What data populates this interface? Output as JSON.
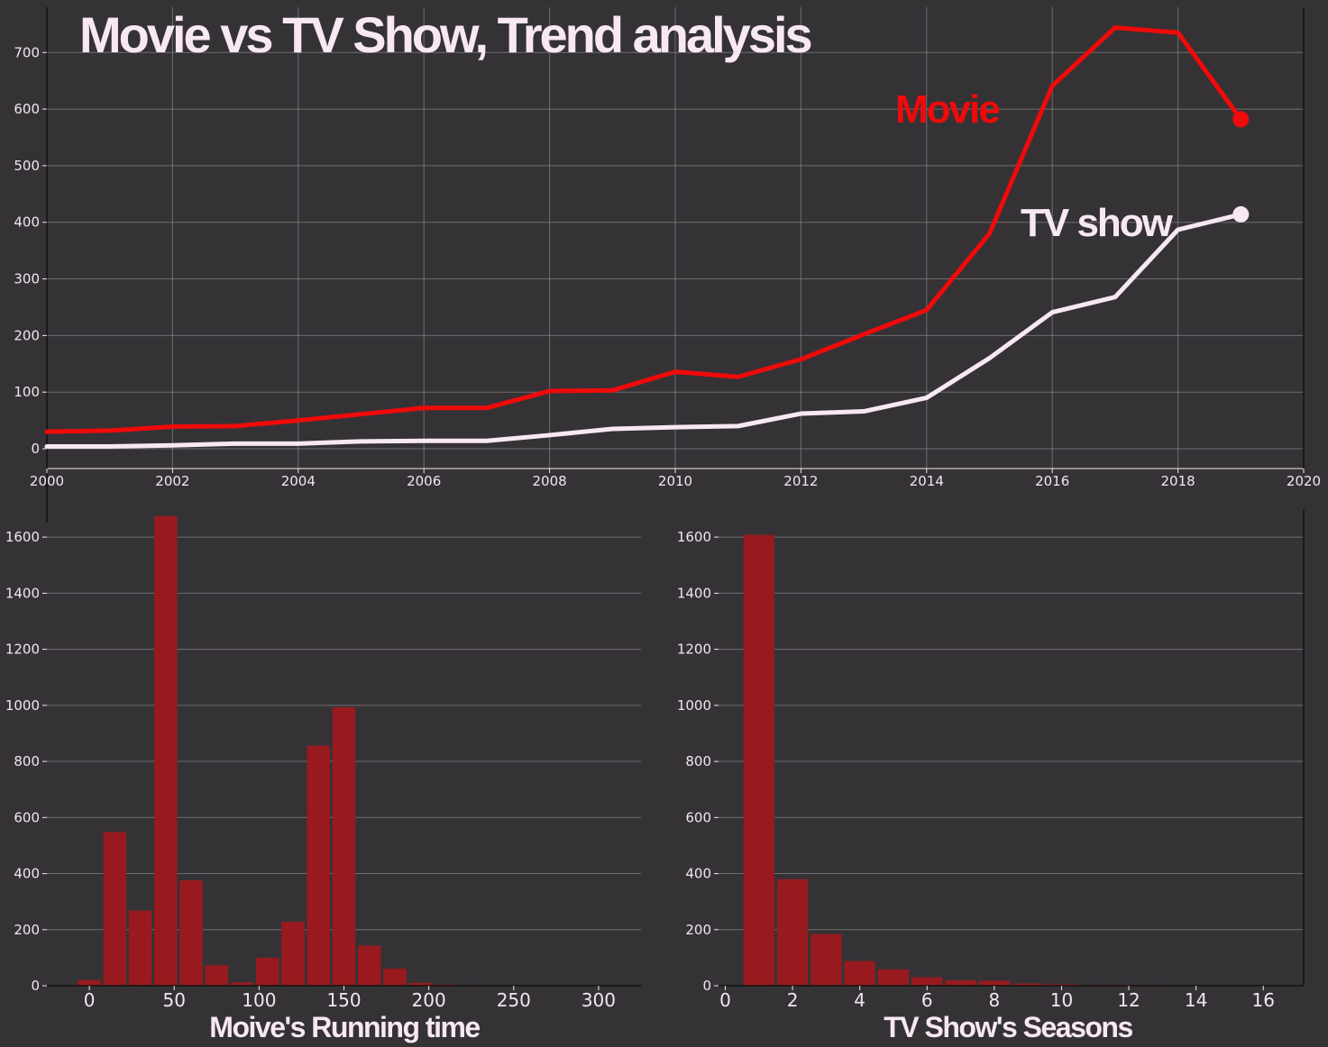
{
  "colors": {
    "background": "#353236",
    "movie": "#f00a0a",
    "tv": "#f7e8f2",
    "bar": "#981a1e",
    "text": "#f2e6ee"
  },
  "chart_data": [
    {
      "type": "line",
      "title": "Movie vs TV Show, Trend analysis",
      "xlabel": "",
      "ylabel": "",
      "xlim": [
        2000,
        2020
      ],
      "ylim": [
        -35,
        780
      ],
      "x_ticks": [
        2000,
        2002,
        2004,
        2006,
        2008,
        2010,
        2012,
        2014,
        2016,
        2018,
        2020
      ],
      "y_ticks": [
        0,
        100,
        200,
        300,
        400,
        500,
        600,
        700
      ],
      "grid": true,
      "x": [
        2000,
        2001,
        2002,
        2003,
        2004,
        2005,
        2006,
        2007,
        2008,
        2009,
        2010,
        2011,
        2012,
        2013,
        2014,
        2015,
        2016,
        2017,
        2018,
        2019
      ],
      "series": [
        {
          "name": "Movie",
          "values": [
            30,
            32,
            39,
            40,
            50,
            61,
            72,
            72,
            102,
            103,
            136,
            127,
            158,
            202,
            245,
            380,
            641,
            744,
            735,
            582
          ]
        },
        {
          "name": "TV show",
          "values": [
            4,
            4,
            6,
            9,
            9,
            13,
            14,
            14,
            24,
            35,
            38,
            40,
            62,
            66,
            90,
            160,
            241,
            268,
            387,
            414
          ]
        }
      ]
    },
    {
      "type": "bar",
      "xlabel": "Moive's Running time",
      "ylabel": "",
      "xlim": [
        -25,
        325
      ],
      "ylim": [
        0,
        1700
      ],
      "x_ticks": [
        0,
        50,
        100,
        150,
        200,
        250,
        300
      ],
      "y_ticks": [
        0,
        200,
        400,
        600,
        800,
        1000,
        1200,
        1400,
        1600
      ],
      "grid": true,
      "bin_width": 15,
      "bin_centers": [
        0,
        15,
        30,
        45,
        60,
        75,
        90,
        105,
        120,
        135,
        150,
        165,
        180,
        195,
        210,
        225
      ],
      "values": [
        20,
        548,
        268,
        1675,
        376,
        73,
        12,
        100,
        228,
        856,
        993,
        143,
        61,
        10,
        4,
        2
      ]
    },
    {
      "type": "bar",
      "xlabel": "TV Show's Seasons",
      "ylabel": "",
      "xlim": [
        -0.2,
        17.2
      ],
      "ylim": [
        0,
        1700
      ],
      "x_ticks": [
        0,
        2,
        4,
        6,
        8,
        10,
        12,
        14,
        16
      ],
      "y_ticks": [
        0,
        200,
        400,
        600,
        800,
        1000,
        1200,
        1400,
        1600
      ],
      "grid": true,
      "bin_centers": [
        1,
        2,
        3,
        4,
        5,
        6,
        7,
        8,
        9,
        10,
        11,
        12,
        13,
        14,
        15,
        16
      ],
      "values": [
        1608,
        380,
        184,
        88,
        58,
        30,
        19,
        18,
        8,
        5,
        3,
        3,
        2,
        1,
        1,
        1
      ]
    }
  ]
}
